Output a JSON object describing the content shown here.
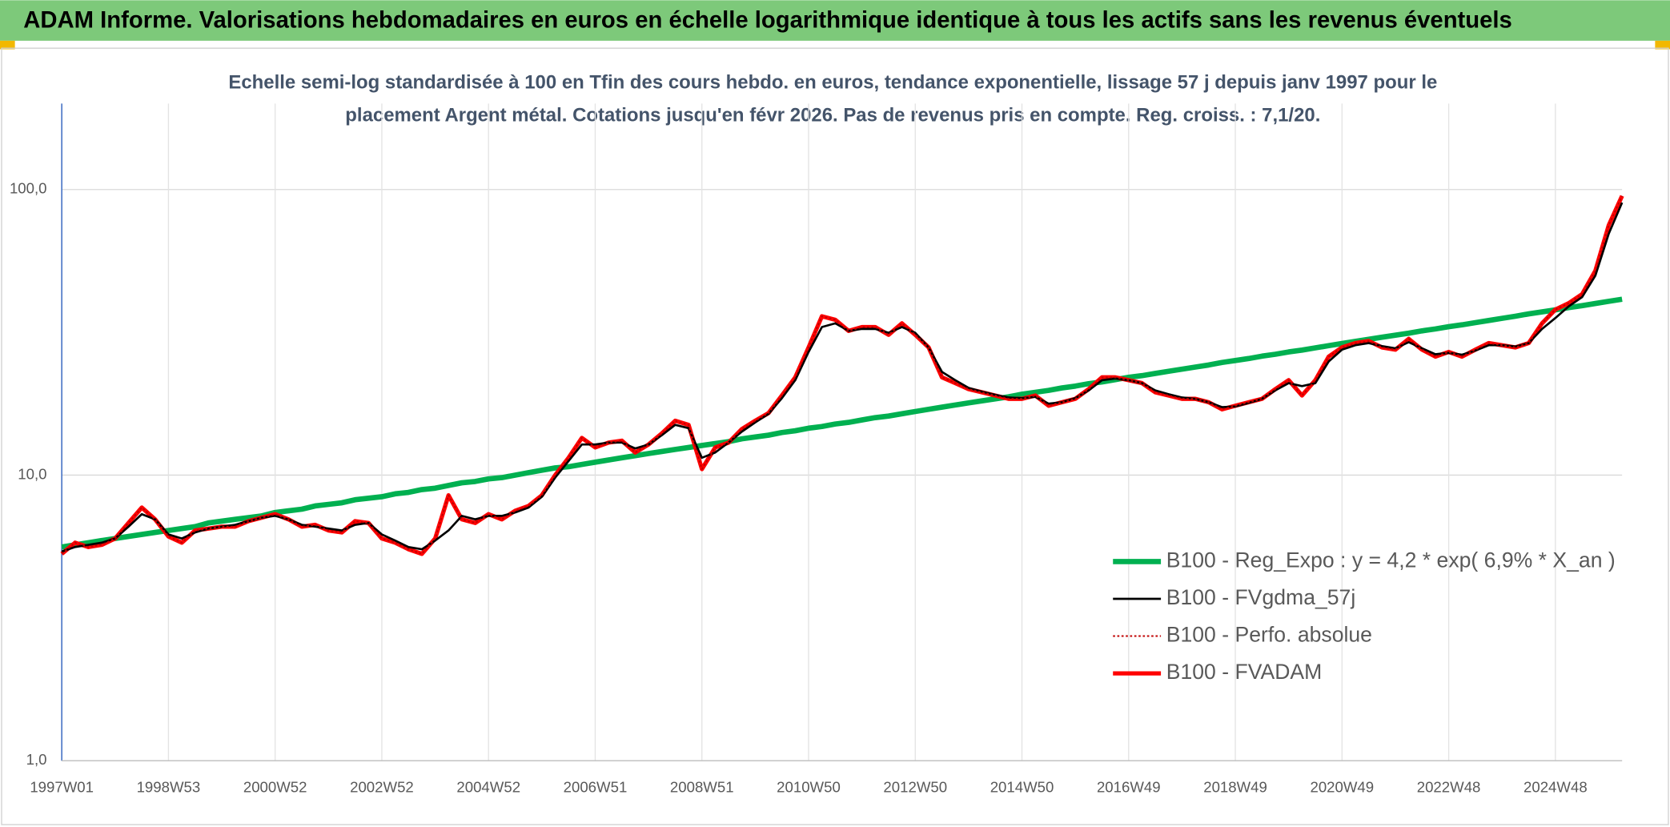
{
  "chart_data": {
    "type": "line",
    "title": "ADAM Informe. Valorisations hebdomadaires en euros en échelle logarithmique identique à tous les actifs sans les revenus éventuels",
    "subtitle": [
      "Echelle semi-log standardisée à 100 en Tfin des cours hebdo. en euros, tendance exponentielle, lissage 57 j depuis janv 1997 pour le",
      "placement Argent métal. Cotations jusqu'en févr 2026. Pas de revenus pris en compte. Reg. croiss. : 7,1/20."
    ],
    "categories": [
      "1997W01",
      null,
      null,
      null,
      null,
      null,
      null,
      null,
      "1998W53",
      null,
      null,
      null,
      null,
      null,
      null,
      null,
      "2000W52",
      null,
      null,
      null,
      null,
      null,
      null,
      null,
      "2002W52",
      null,
      null,
      null,
      null,
      null,
      null,
      null,
      "2004W52",
      null,
      null,
      null,
      null,
      null,
      null,
      null,
      "2006W51",
      null,
      null,
      null,
      null,
      null,
      null,
      null,
      "2008W51",
      null,
      null,
      null,
      null,
      null,
      null,
      null,
      "2010W50",
      null,
      null,
      null,
      null,
      null,
      null,
      null,
      "2012W50",
      null,
      null,
      null,
      null,
      null,
      null,
      null,
      "2014W50",
      null,
      null,
      null,
      null,
      null,
      null,
      null,
      "2016W49",
      null,
      null,
      null,
      null,
      null,
      null,
      null,
      "2018W49",
      null,
      null,
      null,
      null,
      null,
      null,
      null,
      "2020W49",
      null,
      null,
      null,
      null,
      null,
      null,
      null,
      "2022W48",
      null,
      null,
      null,
      null,
      null,
      null,
      null,
      "2024W48",
      null,
      null,
      null,
      null,
      null
    ],
    "log_scale": true,
    "grid": true,
    "legend": "right",
    "ylim": [
      1,
      200
    ],
    "yticks": [
      {
        "value": 1,
        "label": "1,0"
      },
      {
        "value": 10,
        "label": "10,0"
      },
      {
        "value": 100,
        "label": "100,0"
      }
    ],
    "series": [
      {
        "name": "B100 - Reg_Expo : y = 4,2 * exp( 6,9% *  X_an )",
        "color": "#00b050",
        "line_style": "solid",
        "values": [
          5.6,
          5.7,
          5.8,
          5.9,
          6.0,
          6.1,
          6.2,
          6.3,
          6.4,
          6.5,
          6.6,
          6.8,
          6.9,
          7.0,
          7.1,
          7.2,
          7.4,
          7.5,
          7.6,
          7.8,
          7.9,
          8.0,
          8.2,
          8.3,
          8.4,
          8.6,
          8.7,
          8.9,
          9.0,
          9.2,
          9.4,
          9.5,
          9.7,
          9.8,
          10.0,
          10.2,
          10.4,
          10.6,
          10.7,
          10.9,
          11.1,
          11.3,
          11.5,
          11.7,
          11.9,
          12.1,
          12.3,
          12.5,
          12.7,
          12.9,
          13.1,
          13.4,
          13.6,
          13.8,
          14.1,
          14.3,
          14.6,
          14.8,
          15.1,
          15.3,
          15.6,
          15.9,
          16.1,
          16.4,
          16.7,
          17.0,
          17.3,
          17.6,
          17.9,
          18.2,
          18.5,
          18.8,
          19.2,
          19.5,
          19.8,
          20.2,
          20.5,
          20.9,
          21.2,
          21.6,
          22.0,
          22.3,
          22.7,
          23.1,
          23.5,
          23.9,
          24.3,
          24.8,
          25.2,
          25.6,
          26.1,
          26.5,
          27.0,
          27.4,
          27.9,
          28.4,
          28.9,
          29.4,
          29.9,
          30.4,
          30.9,
          31.4,
          32.0,
          32.5,
          33.1,
          33.6,
          34.2,
          34.8,
          35.4,
          36.0,
          36.7,
          37.3,
          37.9,
          38.6,
          39.2,
          39.9,
          40.6,
          41.3
        ]
      },
      {
        "name": "B100 - FVgdma_57j",
        "color": "#000000",
        "line_style": "solid",
        "values": [
          5.4,
          5.6,
          5.7,
          5.8,
          6.0,
          6.6,
          7.3,
          7.0,
          6.2,
          6.0,
          6.3,
          6.5,
          6.6,
          6.7,
          6.9,
          7.1,
          7.2,
          7.0,
          6.7,
          6.6,
          6.5,
          6.4,
          6.7,
          6.8,
          6.2,
          5.9,
          5.6,
          5.5,
          5.9,
          6.4,
          7.2,
          7.0,
          7.2,
          7.2,
          7.4,
          7.7,
          8.4,
          9.8,
          11.2,
          12.8,
          12.8,
          13.0,
          13.0,
          12.4,
          12.8,
          13.8,
          15.0,
          14.6,
          11.5,
          12.0,
          13.0,
          14.2,
          15.3,
          16.4,
          18.6,
          21.5,
          27.0,
          33,
          34,
          32,
          32.5,
          32.5,
          31.5,
          33,
          31.5,
          28,
          23,
          21.5,
          20.2,
          19.6,
          19.1,
          18.7,
          18.6,
          18.8,
          17.8,
          18,
          18.6,
          19.8,
          21.5,
          21.8,
          21.5,
          21,
          19.8,
          19.2,
          18.7,
          18.5,
          18.0,
          17.3,
          17.4,
          17.9,
          18.5,
          19.8,
          21.0,
          20.5,
          21.0,
          25.0,
          27.5,
          28.5,
          29,
          28.3,
          27.8,
          29.2,
          27.8,
          26.5,
          26.8,
          26.4,
          27.3,
          28.5,
          28.5,
          28.2,
          29,
          32.5,
          35.5,
          39,
          42,
          50,
          70,
          90
        ]
      },
      {
        "name": "B100 - Perfo. absolue",
        "color": "#c00000",
        "line_style": "dotted",
        "values": [
          5.3,
          5.8,
          5.6,
          5.7,
          6.0,
          6.8,
          7.7,
          7.0,
          6.1,
          5.8,
          6.4,
          6.5,
          6.6,
          6.6,
          6.9,
          7.1,
          7.3,
          7.0,
          6.6,
          6.7,
          6.4,
          6.3,
          6.9,
          6.8,
          6.0,
          5.8,
          5.5,
          5.3,
          6.0,
          8.5,
          7.0,
          6.8,
          7.3,
          7.0,
          7.5,
          7.8,
          8.5,
          10.0,
          11.5,
          13.5,
          12.5,
          13.0,
          13.2,
          12.0,
          12.8,
          14.0,
          15.5,
          15.0,
          10.5,
          12.5,
          13.0,
          14.5,
          15.5,
          16.5,
          19.0,
          22.0,
          28.0,
          36,
          35,
          32,
          33,
          33,
          31,
          34,
          31,
          28,
          22,
          21,
          20,
          19.5,
          19,
          18.5,
          18.5,
          19,
          17.5,
          18,
          18.5,
          20,
          22,
          22,
          21.5,
          21,
          19.5,
          19,
          18.5,
          18.5,
          18,
          17,
          17.5,
          18,
          18.5,
          20,
          21.5,
          19,
          21.5,
          26,
          28,
          29,
          29.5,
          28,
          27.5,
          30,
          27.5,
          26,
          27,
          26,
          27.5,
          29,
          28.5,
          28,
          29,
          34,
          38,
          40,
          43,
          52,
          75,
          95
        ]
      },
      {
        "name": "B100 - FVADAM",
        "color": "#ff0000",
        "line_style": "solid",
        "values": [
          5.3,
          5.8,
          5.6,
          5.7,
          6.0,
          6.8,
          7.7,
          7.0,
          6.1,
          5.8,
          6.4,
          6.5,
          6.6,
          6.6,
          6.9,
          7.1,
          7.3,
          7.0,
          6.6,
          6.7,
          6.4,
          6.3,
          6.9,
          6.8,
          6.0,
          5.8,
          5.5,
          5.3,
          6.0,
          8.5,
          7.0,
          6.8,
          7.3,
          7.0,
          7.5,
          7.8,
          8.5,
          10.0,
          11.5,
          13.5,
          12.5,
          13.0,
          13.2,
          12.0,
          12.8,
          14.0,
          15.5,
          15.0,
          10.5,
          12.5,
          13.0,
          14.5,
          15.5,
          16.5,
          19.0,
          22.0,
          28.0,
          36,
          35,
          32,
          33,
          33,
          31,
          34,
          31,
          28,
          22,
          21,
          20,
          19.5,
          19,
          18.5,
          18.5,
          19,
          17.5,
          18,
          18.5,
          20,
          22,
          22,
          21.5,
          21,
          19.5,
          19,
          18.5,
          18.5,
          18,
          17,
          17.5,
          18,
          18.5,
          20,
          21.5,
          19,
          21.5,
          26,
          28,
          29,
          29.5,
          28,
          27.5,
          30,
          27.5,
          26,
          27,
          26,
          27.5,
          29,
          28.5,
          28,
          29,
          34,
          38,
          40,
          43,
          52,
          75,
          95
        ]
      }
    ]
  }
}
